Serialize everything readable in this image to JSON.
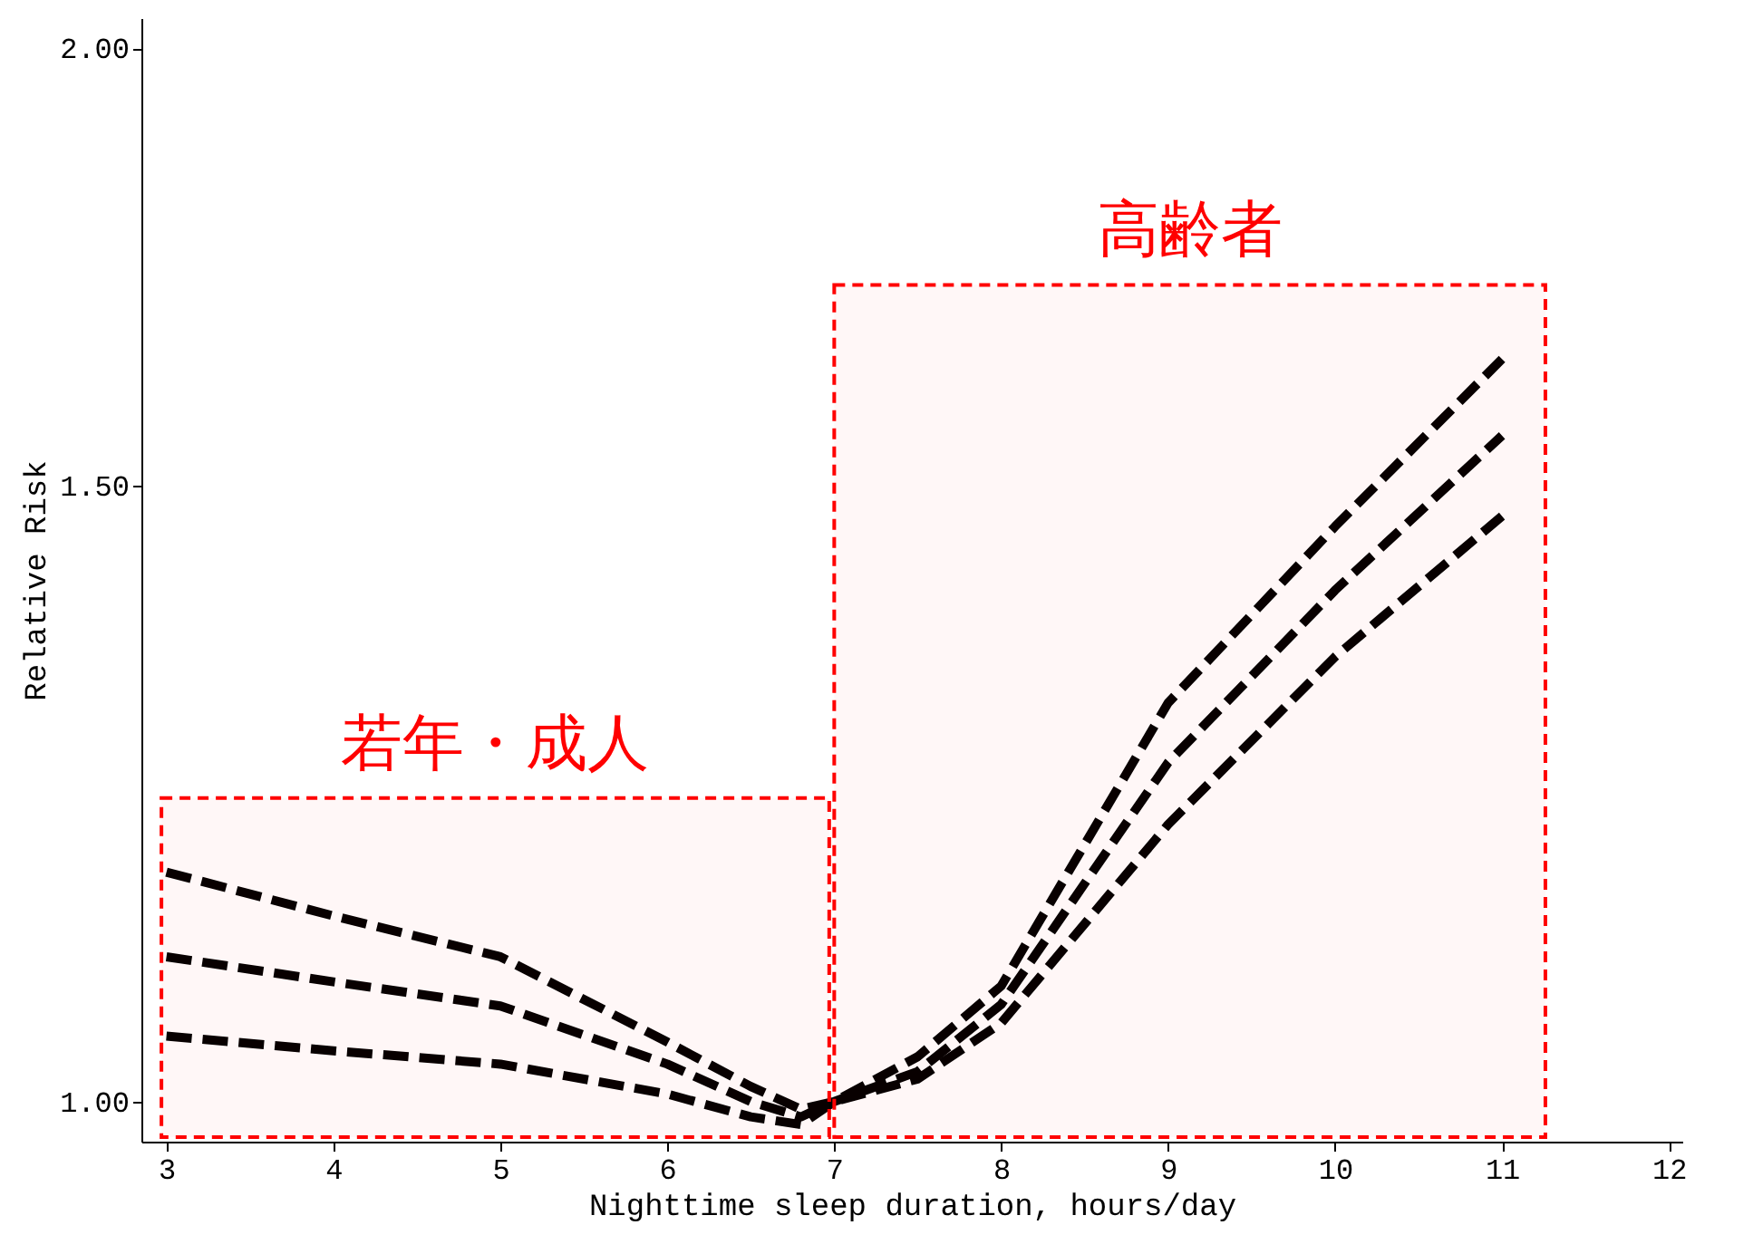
{
  "chart_data": {
    "type": "line",
    "xlabel": "Nighttime sleep duration, hours/day",
    "ylabel": "Relative Risk",
    "log": "y",
    "grid": false,
    "line_style": "dashed",
    "marker": "none",
    "x": [
      3,
      4,
      5,
      6,
      6.5,
      6.8,
      7,
      7.5,
      8,
      9,
      10,
      11
    ],
    "series": [
      {
        "color": "#000000",
        "values": [
          1.163,
          1.13,
          1.1,
          1.04,
          1.01,
          0.995,
          1.0,
          1.03,
          1.079,
          1.3,
          1.46,
          1.63
        ]
      },
      {
        "color": "#000000",
        "values": [
          1.1,
          1.082,
          1.065,
          1.025,
          1.0,
          0.99,
          1.0,
          1.02,
          1.066,
          1.25,
          1.4,
          1.55
        ]
      },
      {
        "color": "#000000",
        "values": [
          1.044,
          1.034,
          1.025,
          1.005,
          0.99,
          0.985,
          1.0,
          1.015,
          1.053,
          1.2,
          1.34,
          1.47
        ]
      }
    ],
    "xlim": [
      2.85,
      12.08
    ],
    "xticks": [
      3,
      4,
      5,
      6,
      7,
      8,
      9,
      10,
      11,
      12
    ],
    "ylim": [
      0.974,
      2.04
    ],
    "yticks": [
      {
        "value": 1,
        "label": "1.00"
      },
      {
        "value": 1.5,
        "label": "1.50"
      },
      {
        "value": 2,
        "label": "2.00"
      }
    ],
    "bands": [
      {
        "axis": "x",
        "from": 2.97,
        "to": 6.97,
        "label": "若年・成人",
        "color": "#ff0000"
      },
      {
        "axis": "x",
        "from": 7.0,
        "to": 11.26,
        "label": "高齢者",
        "color": "#ff0000"
      }
    ]
  }
}
